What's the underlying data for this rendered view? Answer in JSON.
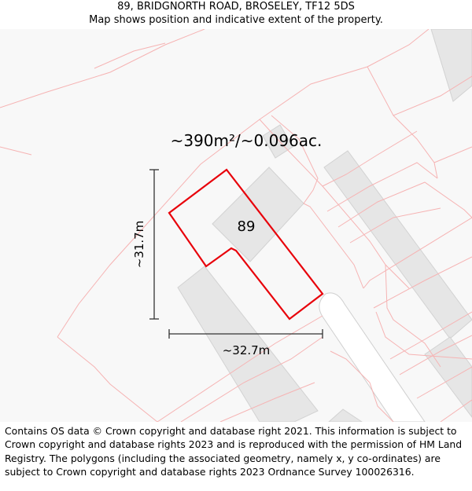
{
  "header": {
    "address": "89, BRIDGNORTH ROAD, BROSELEY, TF12 5DS",
    "subtitle": "Map shows position and indicative extent of the property."
  },
  "map": {
    "area_label": "~390m²/~0.096ac.",
    "plot_number": "89",
    "height_label": "~31.7m",
    "width_label": "~32.7m",
    "colors": {
      "boundary": "#e8000a",
      "parcel_lines": "#f6b3b3",
      "buildings": "#e6e6e6",
      "background": "#f8f8f8"
    }
  },
  "footer": {
    "copyright": "Contains OS data © Crown copyright and database right 2021. This information is subject to Crown copyright and database rights 2023 and is reproduced with the permission of HM Land Registry. The polygons (including the associated geometry, namely x, y co-ordinates) are subject to Crown copyright and database rights 2023 Ordnance Survey 100026316."
  }
}
